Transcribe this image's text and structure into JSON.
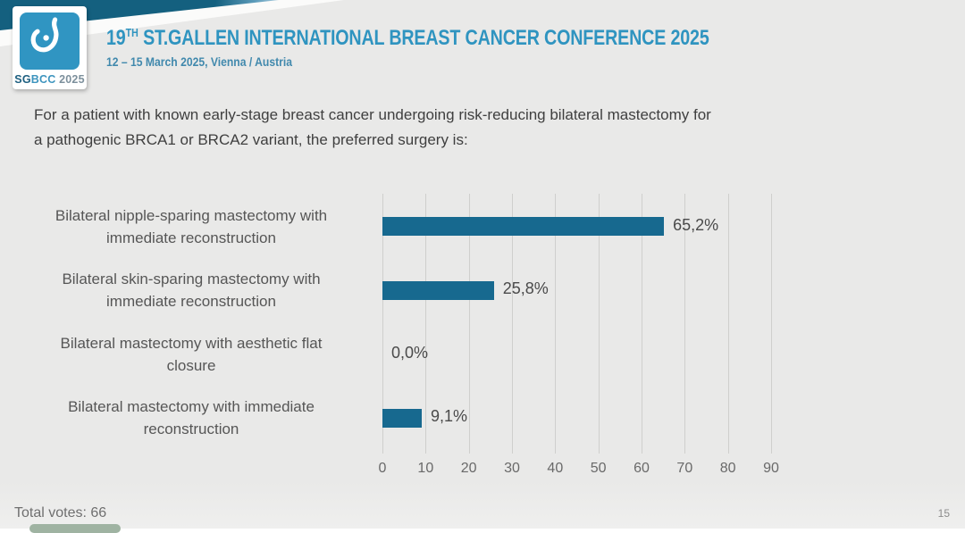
{
  "header": {
    "band_color": "#14607f",
    "accent_color": "#2f94c0",
    "logo": {
      "icon": "sgbcc-drop-logo",
      "sg": "SG",
      "bcc": "BCC",
      "year": " 2025"
    },
    "title": {
      "num": "19",
      "sup": "TH",
      "rest": " ST.GALLEN INTERNATIONAL BREAST CANCER CONFERENCE 2025"
    },
    "subtitle": "12 – 15 March 2025, Vienna / Austria"
  },
  "question": {
    "line1": "For a patient with known early-stage breast cancer undergoing risk-reducing bilateral mastectomy for",
    "line2": "a pathogenic BRCA1 or BRCA2 variant, the preferred surgery is:"
  },
  "chart_data": {
    "type": "bar",
    "orientation": "horizontal",
    "title": "",
    "xlabel": "",
    "ylabel": "",
    "categories": [
      [
        "Bilateral nipple-sparing mastectomy with",
        "immediate reconstruction"
      ],
      [
        "Bilateral skin-sparing mastectomy with",
        "immediate reconstruction"
      ],
      [
        "Bilateral mastectomy with aesthetic flat",
        "closure"
      ],
      [
        "Bilateral mastectomy with immediate",
        "reconstruction"
      ]
    ],
    "values": [
      65.2,
      25.8,
      0.0,
      9.1
    ],
    "value_labels": [
      "65,2%",
      "25,8%",
      "0,0%",
      "9,1%"
    ],
    "xticks": [
      0,
      10,
      20,
      30,
      40,
      50,
      60,
      70,
      80,
      90
    ],
    "xlim": [
      0,
      90
    ],
    "grid": true,
    "legend": false,
    "bar_color": "#17698f",
    "gridline_color": "#cfcfcd"
  },
  "footer": {
    "total_votes": "Total votes: 66",
    "page_number": "15"
  }
}
